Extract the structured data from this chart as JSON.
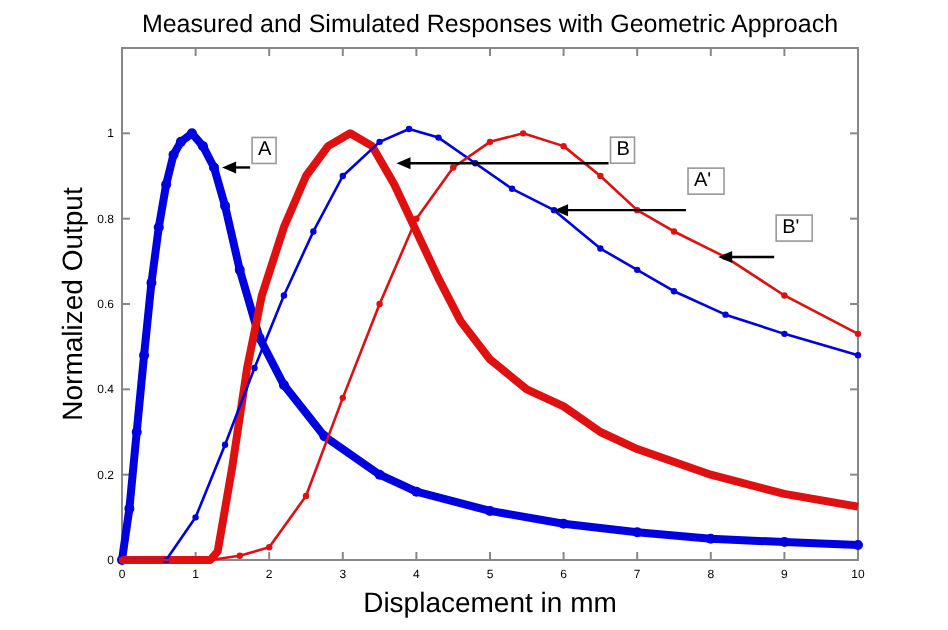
{
  "chart_data": {
    "type": "line",
    "title": "Measured and Simulated Responses with Geometric Approach",
    "xlabel": "Displacement in mm",
    "ylabel": "Normalized Output",
    "xlim": [
      0,
      10
    ],
    "ylim": [
      0,
      1.2
    ],
    "xticks": [
      0,
      1,
      2,
      3,
      4,
      5,
      6,
      7,
      8,
      9,
      10
    ],
    "yticks": [
      0,
      0.2,
      0.4,
      0.6,
      0.8,
      1
    ],
    "grid": false,
    "series": [
      {
        "color": "#0000e0",
        "marker": "circle",
        "x": [
          0,
          0.1,
          0.2,
          0.3,
          0.4,
          0.5,
          0.6,
          0.7,
          0.8,
          0.95,
          1.1,
          1.25,
          1.4,
          1.6,
          1.87,
          2.2,
          2.75,
          3.5,
          4,
          5,
          6,
          7,
          8,
          9,
          10
        ],
        "values": [
          0,
          0.12,
          0.3,
          0.48,
          0.65,
          0.78,
          0.88,
          0.95,
          0.98,
          1.0,
          0.97,
          0.92,
          0.83,
          0.68,
          0.52,
          0.41,
          0.29,
          0.2,
          0.16,
          0.115,
          0.085,
          0.065,
          0.05,
          0.042,
          0.035
        ]
      },
      {
        "color": "#e01010",
        "marker": "none",
        "x": [
          0,
          1.2,
          1.3,
          1.5,
          1.7,
          1.9,
          2.2,
          2.5,
          2.8,
          3.1,
          3.4,
          3.7,
          4,
          4.3,
          4.6,
          5,
          5.5,
          6,
          6.5,
          7,
          8,
          9,
          10
        ],
        "values": [
          0,
          0,
          0.02,
          0.22,
          0.45,
          0.62,
          0.78,
          0.9,
          0.97,
          1.0,
          0.97,
          0.88,
          0.77,
          0.66,
          0.56,
          0.47,
          0.4,
          0.36,
          0.3,
          0.26,
          0.2,
          0.155,
          0.125
        ]
      },
      {
        "color": "#0000e0",
        "marker": "circle",
        "x": [
          0,
          0.6,
          1,
          1.4,
          1.8,
          2.2,
          2.6,
          3,
          3.5,
          3.9,
          4.3,
          4.8,
          5.3,
          5.87,
          6.5,
          7,
          7.5,
          8.2,
          9,
          10
        ],
        "values": [
          0,
          0,
          0.1,
          0.27,
          0.45,
          0.62,
          0.77,
          0.9,
          0.98,
          1.01,
          0.99,
          0.93,
          0.87,
          0.82,
          0.73,
          0.68,
          0.63,
          0.575,
          0.53,
          0.48
        ]
      },
      {
        "color": "#e01010",
        "marker": "circle",
        "x": [
          0,
          1.2,
          1.6,
          2,
          2.5,
          3,
          3.5,
          4,
          4.5,
          5,
          5.45,
          6,
          6.5,
          7,
          7.5,
          8.2,
          9,
          10
        ],
        "values": [
          0,
          0,
          0.01,
          0.03,
          0.15,
          0.38,
          0.6,
          0.8,
          0.92,
          0.98,
          1.0,
          0.97,
          0.9,
          0.82,
          0.77,
          0.71,
          0.62,
          0.53
        ]
      }
    ],
    "annotations": [
      {
        "text": "A",
        "x": 1.36,
        "y": 0.92
      },
      {
        "text": "B",
        "x": 3.73,
        "y": 0.93
      },
      {
        "text": "A'",
        "x": 5.87,
        "y": 0.82
      },
      {
        "text": "B'",
        "x": 8.1,
        "y": 0.71
      }
    ]
  }
}
